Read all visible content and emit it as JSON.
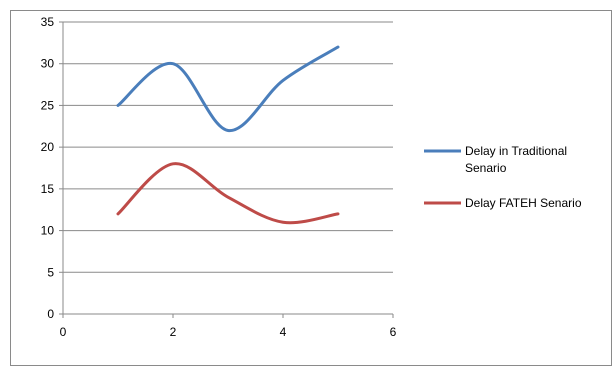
{
  "chart_data": {
    "type": "line",
    "title": "",
    "xlabel": "",
    "ylabel": "",
    "xlim": [
      0,
      6
    ],
    "ylim": [
      0,
      35
    ],
    "x_ticks": [
      0,
      2,
      4,
      6
    ],
    "y_ticks": [
      0,
      5,
      10,
      15,
      20,
      25,
      30,
      35
    ],
    "grid": "horizontal",
    "smooth": true,
    "legend_position": "right",
    "series": [
      {
        "name": "Delay in Traditional Senario",
        "name_lines": [
          "Delay in Traditional",
          "Senario"
        ],
        "color": "#4a7ebb",
        "x": [
          1,
          2,
          3,
          4,
          5
        ],
        "y": [
          25,
          30,
          22,
          28,
          32
        ]
      },
      {
        "name": "Delay FATEH Senario",
        "name_lines": [
          "Delay FATEH Senario"
        ],
        "color": "#be4b48",
        "x": [
          1,
          2,
          3,
          4,
          5
        ],
        "y": [
          12,
          18,
          14,
          11,
          12
        ]
      }
    ]
  }
}
